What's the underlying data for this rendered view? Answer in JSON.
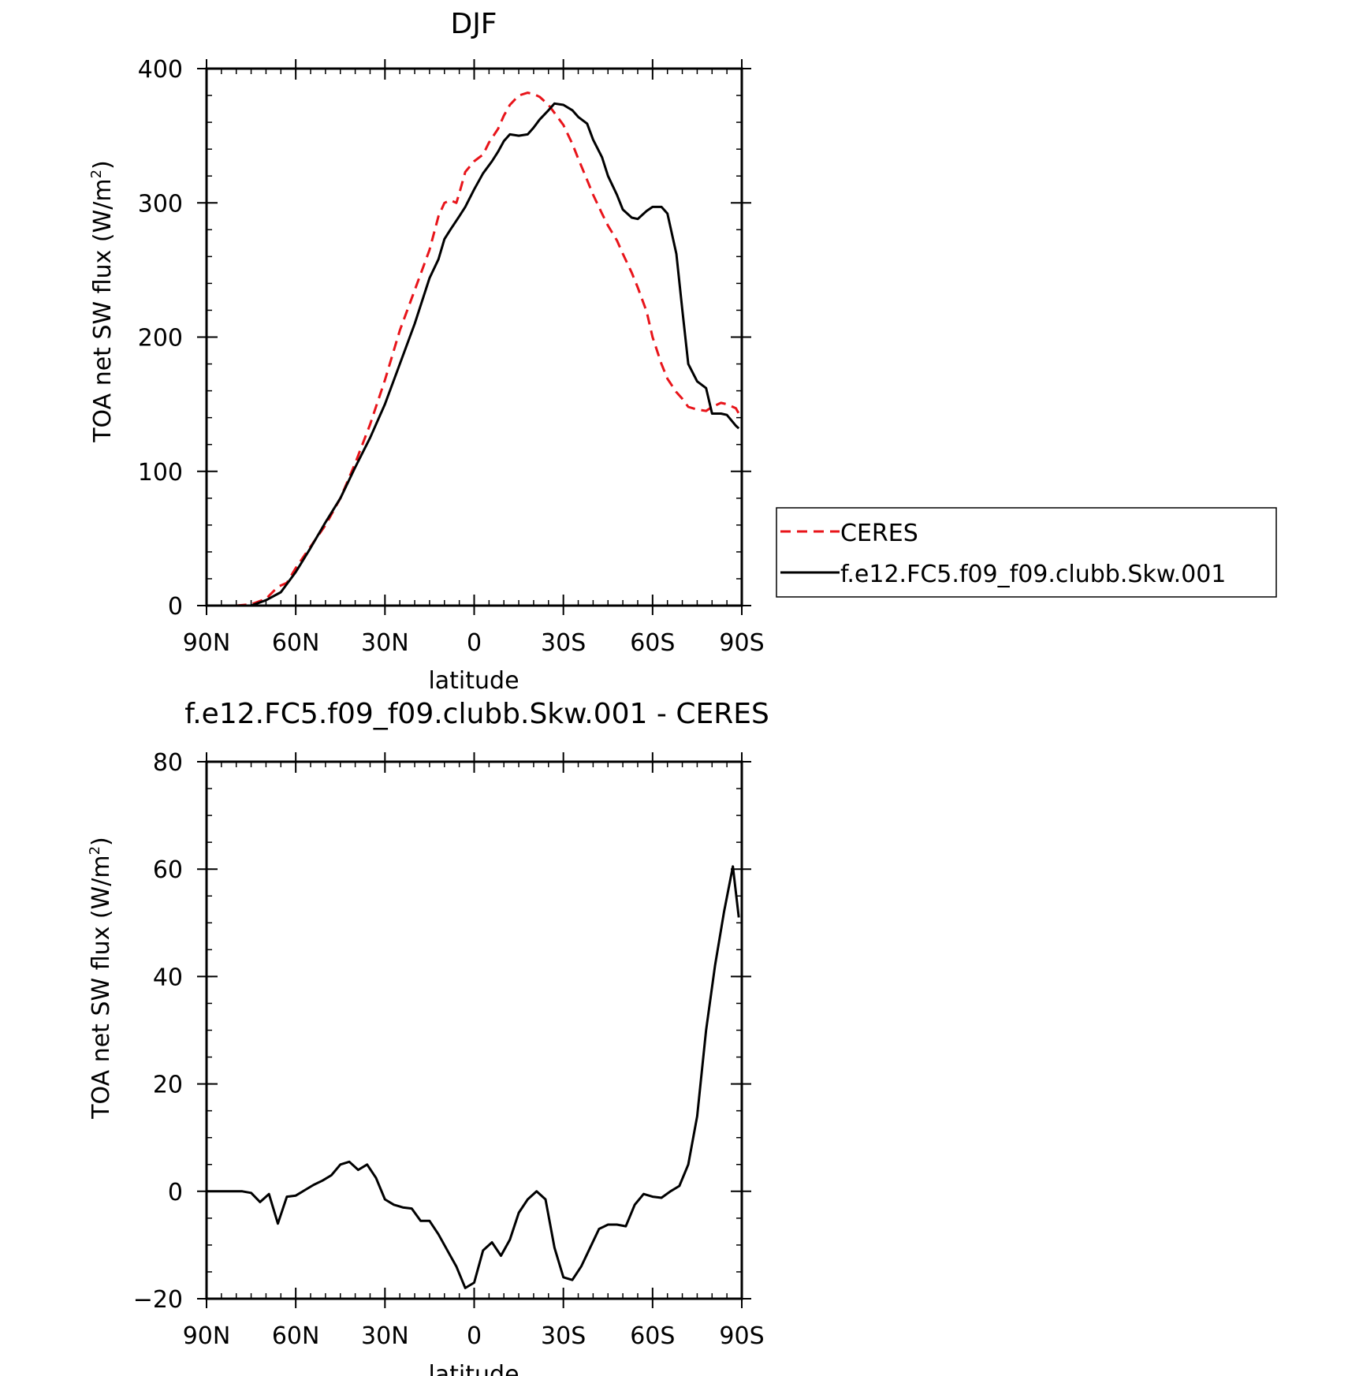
{
  "chart_data": [
    {
      "type": "line",
      "title": "DJF",
      "xlabel": "latitude",
      "ylabel": "TOA net SW flux (W/m²)",
      "ylabel_parts": {
        "base": "TOA net SW flux (W/m",
        "sup": "2",
        "tail": ")"
      },
      "xlim": [
        90,
        -90
      ],
      "ylim": [
        0,
        400
      ],
      "xticks": [
        {
          "value": 90,
          "label": "90N"
        },
        {
          "value": 60,
          "label": "60N"
        },
        {
          "value": 30,
          "label": "30N"
        },
        {
          "value": 0,
          "label": "0"
        },
        {
          "value": -30,
          "label": "30S"
        },
        {
          "value": -60,
          "label": "60S"
        },
        {
          "value": -90,
          "label": "90S"
        }
      ],
      "yticks": [
        {
          "value": 0,
          "label": "0"
        },
        {
          "value": 100,
          "label": "100"
        },
        {
          "value": 200,
          "label": "200"
        },
        {
          "value": 300,
          "label": "300"
        },
        {
          "value": 400,
          "label": "400"
        }
      ],
      "legend_position": "right",
      "grid": false,
      "series": [
        {
          "name": "CERES",
          "color": "#e8141a",
          "dash": "dashed",
          "x": [
            80,
            75,
            70,
            66,
            63,
            60,
            55,
            50,
            45,
            40,
            35,
            30,
            25,
            20,
            15,
            12,
            10,
            8,
            6,
            5,
            3,
            0,
            -3,
            -5,
            -8,
            -10,
            -12,
            -15,
            -18,
            -20,
            -22,
            -25,
            -27,
            -30,
            -33,
            -35,
            -38,
            -40,
            -43,
            -45,
            -48,
            -50,
            -53,
            -55,
            -58,
            -60,
            -63,
            -65,
            -68,
            -70,
            -72,
            -75,
            -78,
            -80,
            -83,
            -85,
            -88,
            -89
          ],
          "y": [
            0,
            1,
            5,
            14,
            17,
            28,
            44,
            60,
            80,
            106,
            135,
            168,
            205,
            235,
            265,
            290,
            300,
            302,
            300,
            307,
            323,
            331,
            336,
            345,
            355,
            365,
            373,
            380,
            382,
            381,
            379,
            373,
            367,
            358,
            344,
            333,
            317,
            306,
            292,
            283,
            272,
            262,
            248,
            237,
            219,
            200,
            180,
            169,
            159,
            154,
            148,
            146,
            145,
            148,
            151,
            150,
            147,
            143
          ]
        },
        {
          "name": "f.e12.FC5.f09_f09.clubb.Skw.001",
          "color": "#000000",
          "dash": "solid",
          "x": [
            80,
            75,
            70,
            65,
            60,
            55,
            50,
            45,
            40,
            35,
            30,
            25,
            20,
            15,
            12,
            10,
            8,
            5,
            3,
            0,
            -3,
            -6,
            -8,
            -10,
            -12,
            -15,
            -18,
            -20,
            -22,
            -25,
            -27,
            -30,
            -33,
            -35,
            -38,
            -40,
            -43,
            -45,
            -48,
            -50,
            -53,
            -55,
            -58,
            -60,
            -63,
            -65,
            -68,
            -70,
            -72,
            -75,
            -78,
            -80,
            -83,
            -85,
            -88,
            -89
          ],
          "y": [
            0,
            0,
            4,
            10,
            25,
            43,
            62,
            80,
            103,
            125,
            150,
            180,
            210,
            244,
            258,
            273,
            280,
            290,
            297,
            310,
            322,
            331,
            338,
            346,
            351,
            350,
            351,
            356,
            362,
            369,
            374,
            373,
            369,
            364,
            359,
            347,
            334,
            320,
            306,
            295,
            289,
            288,
            294,
            297,
            297,
            292,
            262,
            220,
            180,
            167,
            162,
            143,
            143,
            142,
            134,
            132
          ]
        }
      ]
    },
    {
      "type": "line",
      "title": "f.e12.FC5.f09_f09.clubb.Skw.001 - CERES",
      "xlabel": "latitude",
      "ylabel": "TOA net SW flux (W/m²)",
      "ylabel_parts": {
        "base": "TOA net SW flux (W/m",
        "sup": "2",
        "tail": ")"
      },
      "xlim": [
        90,
        -90
      ],
      "ylim": [
        -20,
        80
      ],
      "xticks": [
        {
          "value": 90,
          "label": "90N"
        },
        {
          "value": 60,
          "label": "60N"
        },
        {
          "value": 30,
          "label": "30N"
        },
        {
          "value": 0,
          "label": "0"
        },
        {
          "value": -30,
          "label": "30S"
        },
        {
          "value": -60,
          "label": "60S"
        },
        {
          "value": -90,
          "label": "90S"
        }
      ],
      "yticks": [
        {
          "value": -20,
          "label": "−20"
        },
        {
          "value": 0,
          "label": "0"
        },
        {
          "value": 20,
          "label": "20"
        },
        {
          "value": 40,
          "label": "40"
        },
        {
          "value": 60,
          "label": "60"
        },
        {
          "value": 80,
          "label": "80"
        }
      ],
      "grid": false,
      "series": [
        {
          "color": "#000000",
          "dash": "solid",
          "x": [
            90,
            87,
            84,
            81,
            78,
            75,
            72,
            69,
            66,
            63,
            60,
            57,
            54,
            51,
            48,
            45,
            42,
            39,
            36,
            33,
            30,
            27,
            24,
            21,
            18,
            15,
            12,
            9,
            6,
            3,
            0,
            -3,
            -6,
            -9,
            -12,
            -15,
            -18,
            -21,
            -24,
            -27,
            -30,
            -33,
            -36,
            -39,
            -42,
            -45,
            -48,
            -51,
            -54,
            -57,
            -60,
            -63,
            -66,
            -69,
            -72,
            -75,
            -78,
            -81,
            -84,
            -87,
            -89
          ],
          "y": [
            0,
            0,
            0,
            0,
            0,
            -0.3,
            -2,
            -0.5,
            -6,
            -1,
            -0.8,
            0.2,
            1.2,
            2,
            3,
            5,
            5.5,
            4,
            5,
            2.5,
            -1.5,
            -2.5,
            -3,
            -3.2,
            -5.5,
            -5.5,
            -8,
            -11,
            -14,
            -18,
            -17,
            -11,
            -9.5,
            -12,
            -9,
            -4,
            -1.5,
            0,
            -1.5,
            -10.5,
            -16,
            -16.5,
            -14,
            -10.5,
            -7,
            -6.2,
            -6.2,
            -6.5,
            -2.5,
            -0.5,
            -1,
            -1.2,
            0,
            1,
            5,
            14,
            30,
            42,
            52,
            60.5,
            51
          ]
        }
      ]
    }
  ]
}
